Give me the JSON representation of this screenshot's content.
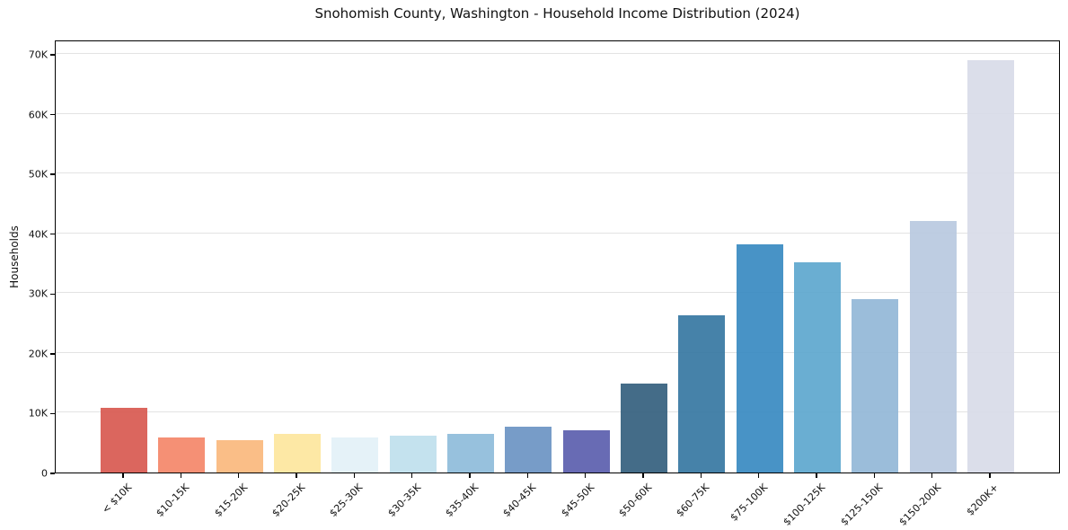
{
  "figure": {
    "title": "Snohomish County, Washington - Household Income Distribution (2024)"
  },
  "chart_data": {
    "type": "bar",
    "title": "Snohomish County, Washington - Household Income Distribution (2024)",
    "xlabel": "",
    "ylabel": "Households",
    "categories": [
      "< $10K",
      "$10-15K",
      "$15-20K",
      "$20-25K",
      "$25-30K",
      "$30-35K",
      "$35-40K",
      "$40-45K",
      "$45-50K",
      "$50-60K",
      "$60-75K",
      "$75-100K",
      "$100-125K",
      "$125-150K",
      "$150-200K",
      "$200K+"
    ],
    "values": [
      10800,
      5900,
      5400,
      6400,
      5800,
      6200,
      6400,
      7600,
      7100,
      14900,
      26300,
      38200,
      35100,
      29000,
      42000,
      68900
    ],
    "bar_colors": [
      "#d85a52",
      "#f4886b",
      "#fab97e",
      "#fde69e",
      "#e3f1f7",
      "#bfe0ed",
      "#8fbcda",
      "#6d94c4",
      "#5c60ae",
      "#36617f",
      "#3878a3",
      "#3a8bc2",
      "#5fa8cf",
      "#93b8d7",
      "#b9c9e0",
      "#d8dbe8"
    ],
    "yticks": [
      {
        "value": 0,
        "label": "0"
      },
      {
        "value": 10000,
        "label": "10K"
      },
      {
        "value": 20000,
        "label": "20K"
      },
      {
        "value": 30000,
        "label": "30K"
      },
      {
        "value": 40000,
        "label": "40K"
      },
      {
        "value": 50000,
        "label": "50K"
      },
      {
        "value": 60000,
        "label": "60K"
      },
      {
        "value": 70000,
        "label": "70K"
      }
    ],
    "ylim": [
      0,
      72400
    ],
    "grid": "horizontal",
    "legend": "none",
    "colors": {
      "background": "#ffffff",
      "axis": "#000000",
      "gridline": "#e3e3e3",
      "text": "#111111"
    }
  }
}
